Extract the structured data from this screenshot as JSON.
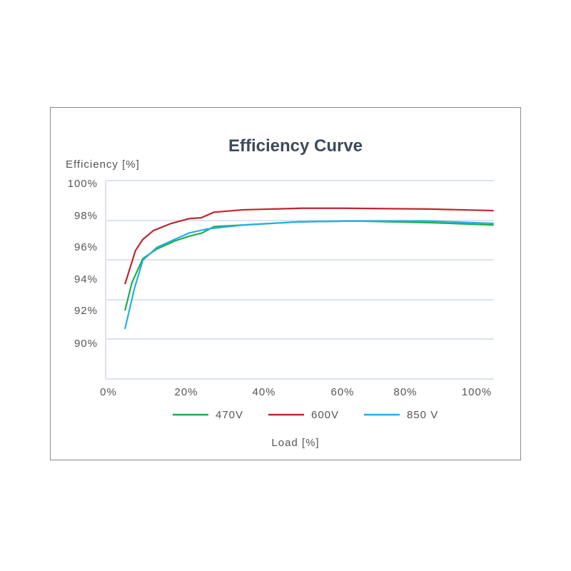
{
  "chart_data": {
    "type": "line",
    "title": "Efficiency Curve",
    "ylabel": "Efficiency [%]",
    "xlabel": "Load [%]",
    "xlim": [
      0,
      100
    ],
    "ylim": [
      90,
      100
    ],
    "x_ticks": [
      "0%",
      "20%",
      "40%",
      "60%",
      "80%",
      "100%"
    ],
    "y_ticks": [
      "100%",
      "98%",
      "96%",
      "94%",
      "92%",
      "90%"
    ],
    "grid": true,
    "legend_position": "bottom",
    "series": [
      {
        "name": "470V",
        "color": "#1fae4b",
        "x": [
          4.6,
          6.4,
          9.2,
          12.8,
          17.4,
          21.1,
          24.4,
          27.5,
          35,
          49.5,
          64,
          82.6,
          99.4
        ],
        "y": [
          92.05,
          93.8,
          95.3,
          95.9,
          96.4,
          96.7,
          96.9,
          97.3,
          97.4,
          97.6,
          97.65,
          97.55,
          97.4
        ]
      },
      {
        "name": "600V",
        "color": "#c0262d",
        "x": [
          4.6,
          7.3,
          9.2,
          11.9,
          16.5,
          21.1,
          24.2,
          27.5,
          35,
          50,
          60.5,
          82.6,
          99.4
        ],
        "y": [
          93.7,
          95.8,
          96.5,
          97.05,
          97.5,
          97.8,
          97.85,
          98.2,
          98.35,
          98.45,
          98.45,
          98.4,
          98.3
        ]
      },
      {
        "name": "850 V",
        "color": "#27aee3",
        "x": [
          4.6,
          7,
          9.2,
          12.8,
          17.4,
          21.1,
          25.7,
          35,
          49.5,
          64,
          82.6,
          99.4
        ],
        "y": [
          90.9,
          93.4,
          95.2,
          96.0,
          96.5,
          96.9,
          97.15,
          97.4,
          97.6,
          97.65,
          97.65,
          97.5
        ]
      }
    ]
  }
}
